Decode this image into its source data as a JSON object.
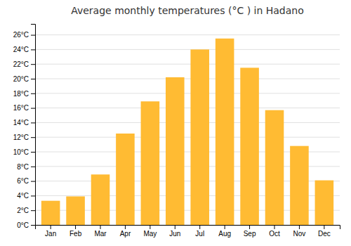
{
  "chart_data": {
    "type": "bar",
    "title": "Average monthly temperatures (°C ) in Hadano",
    "categories": [
      "Jan",
      "Feb",
      "Mar",
      "Apr",
      "May",
      "Jun",
      "Jul",
      "Aug",
      "Sep",
      "Oct",
      "Nov",
      "Dec"
    ],
    "values": [
      3.3,
      3.9,
      6.9,
      12.5,
      16.9,
      20.2,
      24.0,
      25.5,
      21.5,
      15.7,
      10.8,
      6.1
    ],
    "color": "#FFBB33",
    "ylim": [
      0,
      27.5
    ],
    "yticks": [
      {
        "value": 0,
        "label": "0°C"
      },
      {
        "value": 2,
        "label": "2°C"
      },
      {
        "value": 4,
        "label": "4°C"
      },
      {
        "value": 6,
        "label": "6°C"
      },
      {
        "value": 8,
        "label": "8°C"
      },
      {
        "value": 10,
        "label": "10°C"
      },
      {
        "value": 12,
        "label": "12°C"
      },
      {
        "value": 14,
        "label": "14°C"
      },
      {
        "value": 16,
        "label": "16°C"
      },
      {
        "value": 18,
        "label": "18°C"
      },
      {
        "value": 20,
        "label": "20°C"
      },
      {
        "value": 22,
        "label": "22°C"
      },
      {
        "value": 24,
        "label": "24°C"
      },
      {
        "value": 26,
        "label": "26°C"
      }
    ],
    "grid": true
  }
}
